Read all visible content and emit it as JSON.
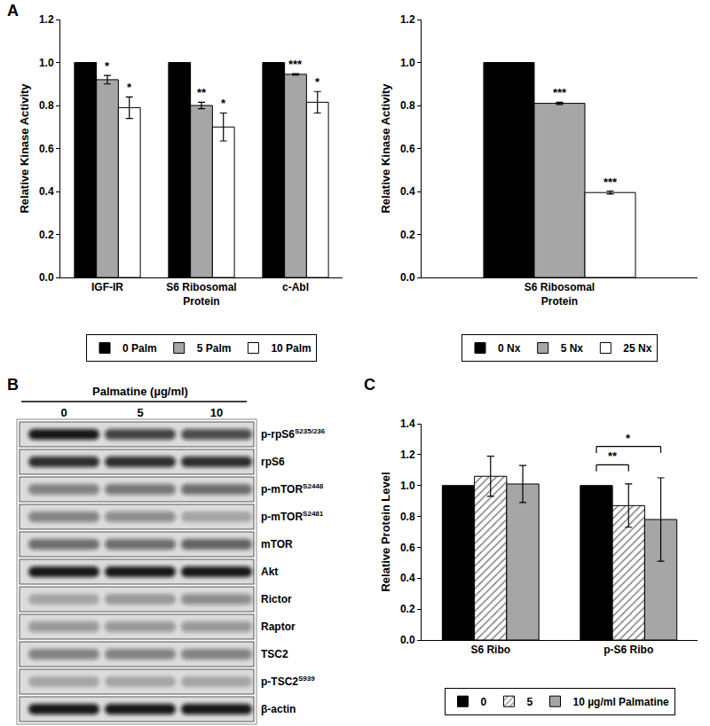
{
  "panel_labels": [
    "A",
    "B",
    "C"
  ],
  "chart_data": [
    {
      "type": "bar",
      "categories": [
        "IGF-IR",
        "S6 Ribosomal Protein",
        "c-Abl"
      ],
      "series": [
        {
          "name": "0 Palm",
          "color": "#000000",
          "values": [
            1.0,
            1.0,
            1.0
          ]
        },
        {
          "name": "5 Palm",
          "color": "#a6a6a6",
          "values": [
            0.92,
            0.8,
            0.945
          ],
          "errors": [
            0.02,
            0.015,
            0.003
          ],
          "significance": [
            "*",
            "**",
            "***"
          ]
        },
        {
          "name": "10 Palm",
          "color": "#ffffff",
          "values": [
            0.79,
            0.7,
            0.815
          ],
          "errors": [
            0.05,
            0.065,
            0.05
          ],
          "significance": [
            "*",
            "*",
            "*"
          ]
        }
      ],
      "y_label": "Relative Kinase Activity",
      "ylim": [
        0,
        1.2
      ],
      "yticks": [
        {
          "value": 0,
          "label": "0.0"
        },
        {
          "value": 0.2,
          "label": "0.2"
        },
        {
          "value": 0.4,
          "label": "0.4"
        },
        {
          "value": 0.6,
          "label": "0.6"
        },
        {
          "value": 0.8,
          "label": "0.8"
        },
        {
          "value": 1.0,
          "label": "1.0"
        },
        {
          "value": 1.2,
          "label": "1.2"
        }
      ],
      "grid": false,
      "legend": "bottom"
    },
    {
      "type": "bar",
      "categories": [
        "S6 Ribosomal Protein"
      ],
      "series": [
        {
          "name": "0 Nx",
          "color": "#000000",
          "values": [
            1.0
          ]
        },
        {
          "name": "5 Nx",
          "color": "#a6a6a6",
          "values": [
            0.81
          ],
          "errors": [
            0.005
          ],
          "significance": [
            "***"
          ]
        },
        {
          "name": "25 Nx",
          "color": "#ffffff",
          "values": [
            0.395
          ],
          "errors": [
            0.007
          ],
          "significance": [
            "***"
          ]
        }
      ],
      "y_label": "Relative Kinase Activity",
      "ylim": [
        0,
        1.2
      ],
      "yticks": [
        {
          "value": 0,
          "label": "0.0"
        },
        {
          "value": 0.2,
          "label": "0.2"
        },
        {
          "value": 0.4,
          "label": "0.4"
        },
        {
          "value": 0.6,
          "label": "0.6"
        },
        {
          "value": 0.8,
          "label": "0.8"
        },
        {
          "value": 1.0,
          "label": "1.0"
        },
        {
          "value": 1.2,
          "label": "1.2"
        }
      ],
      "grid": false,
      "legend": "bottom"
    },
    {
      "type": "bar",
      "categories": [
        "S6 Ribo",
        "p-S6 Ribo"
      ],
      "series": [
        {
          "name": "0",
          "color": "#000000",
          "values": [
            1.0,
            1.0
          ]
        },
        {
          "name": "5",
          "color": "#ffffff",
          "marker": "hatched",
          "values": [
            1.06,
            0.87
          ],
          "errors": [
            0.13,
            0.14
          ]
        },
        {
          "name": "10 µg/ml Palmatine",
          "color": "#a6a6a6",
          "values": [
            1.01,
            0.78
          ],
          "errors": [
            0.12,
            0.27
          ]
        }
      ],
      "comparisons": [
        {
          "category": "p-S6 Ribo",
          "from": "0",
          "to": "5",
          "label": "**"
        },
        {
          "category": "p-S6 Ribo",
          "from": "0",
          "to": "10 µg/ml Palmatine",
          "label": "*"
        }
      ],
      "y_label": "Relative Protein Level",
      "ylim": [
        0,
        1.4
      ],
      "yticks": [
        {
          "value": 0,
          "label": "0.0"
        },
        {
          "value": 0.2,
          "label": "0.2"
        },
        {
          "value": 0.4,
          "label": "0.4"
        },
        {
          "value": 0.6,
          "label": "0.6"
        },
        {
          "value": 0.8,
          "label": "0.8"
        },
        {
          "value": 1.0,
          "label": "1.0"
        },
        {
          "value": 1.2,
          "label": "1.2"
        },
        {
          "value": 1.4,
          "label": "1.4"
        }
      ],
      "grid": false,
      "legend": "bottom"
    }
  ],
  "blot": {
    "title": "Palmatine (µg/ml)",
    "lanes": [
      "0",
      "5",
      "10"
    ],
    "rows": [
      {
        "label": "p-rpS6",
        "site": "S235/236",
        "band_intensity": [
          0.95,
          0.75,
          0.7
        ]
      },
      {
        "label": "rpS6",
        "band_intensity": [
          0.85,
          0.85,
          0.85
        ]
      },
      {
        "label": "p-mTOR",
        "site": "S2448",
        "band_intensity": [
          0.45,
          0.5,
          0.55
        ]
      },
      {
        "label": "p-mTOR",
        "site": "S2481",
        "band_intensity": [
          0.45,
          0.4,
          0.25
        ]
      },
      {
        "label": "mTOR",
        "band_intensity": [
          0.55,
          0.55,
          0.6
        ]
      },
      {
        "label": "Akt",
        "band_intensity": [
          0.95,
          0.95,
          0.95
        ]
      },
      {
        "label": "Rictor",
        "band_intensity": [
          0.25,
          0.3,
          0.4
        ]
      },
      {
        "label": "Raptor",
        "band_intensity": [
          0.35,
          0.35,
          0.35
        ]
      },
      {
        "label": "TSC2",
        "band_intensity": [
          0.45,
          0.45,
          0.45
        ]
      },
      {
        "label": "p-TSC2",
        "site": "S939",
        "band_intensity": [
          0.25,
          0.25,
          0.25
        ]
      },
      {
        "label": "β-actin",
        "band_intensity": [
          0.95,
          0.95,
          0.95
        ]
      }
    ]
  }
}
